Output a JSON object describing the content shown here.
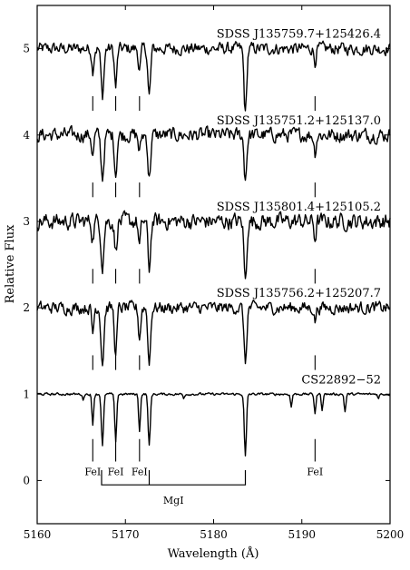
{
  "chart_data": {
    "type": "line",
    "xlabel": "Wavelength (Å)",
    "ylabel": "Relative Flux",
    "xlim": [
      5160,
      5200
    ],
    "ylim": [
      -0.5,
      5.5
    ],
    "xticks": [
      5160,
      5170,
      5180,
      5190,
      5200
    ],
    "yticks": [
      0,
      1,
      2,
      3,
      4,
      5
    ],
    "grid": false,
    "series": [
      {
        "name": "SDSS J135759.7+125426.4",
        "offset": 5,
        "noise": 0.06,
        "lines": [
          [
            5166.3,
            0.25,
            0.12
          ],
          [
            5167.4,
            0.55,
            0.16
          ],
          [
            5168.9,
            0.45,
            0.14
          ],
          [
            5171.6,
            0.25,
            0.13
          ],
          [
            5172.7,
            0.55,
            0.15
          ],
          [
            5183.6,
            0.75,
            0.15
          ],
          [
            5191.5,
            0.15,
            0.12
          ]
        ]
      },
      {
        "name": "SDSS J135751.2+125137.0",
        "offset": 4,
        "noise": 0.07,
        "lines": [
          [
            5166.3,
            0.25,
            0.12
          ],
          [
            5167.4,
            0.5,
            0.16
          ],
          [
            5168.9,
            0.45,
            0.14
          ],
          [
            5171.6,
            0.2,
            0.13
          ],
          [
            5172.7,
            0.5,
            0.15
          ],
          [
            5183.6,
            0.5,
            0.15
          ],
          [
            5191.5,
            0.2,
            0.12
          ]
        ]
      },
      {
        "name": "SDSS J135801.4+125105.2",
        "offset": 3,
        "noise": 0.08,
        "lines": [
          [
            5166.3,
            0.2,
            0.12
          ],
          [
            5167.4,
            0.5,
            0.16
          ],
          [
            5168.9,
            0.35,
            0.14
          ],
          [
            5171.6,
            0.3,
            0.13
          ],
          [
            5172.7,
            0.55,
            0.15
          ],
          [
            5183.6,
            0.7,
            0.15
          ],
          [
            5191.5,
            0.2,
            0.12
          ]
        ]
      },
      {
        "name": "SDSS J135756.2+125207.7",
        "offset": 2,
        "noise": 0.06,
        "lines": [
          [
            5166.3,
            0.3,
            0.12
          ],
          [
            5167.4,
            0.65,
            0.16
          ],
          [
            5168.9,
            0.55,
            0.14
          ],
          [
            5171.6,
            0.35,
            0.13
          ],
          [
            5172.7,
            0.65,
            0.15
          ],
          [
            5183.6,
            0.65,
            0.15
          ],
          [
            5191.5,
            0.15,
            0.12
          ]
        ]
      },
      {
        "name": "CS22892−52",
        "offset": 1,
        "noise": 0.012,
        "lines": [
          [
            5165.2,
            0.07,
            0.08
          ],
          [
            5166.3,
            0.35,
            0.1
          ],
          [
            5167.4,
            0.6,
            0.12
          ],
          [
            5168.9,
            0.55,
            0.11
          ],
          [
            5171.6,
            0.42,
            0.1
          ],
          [
            5172.7,
            0.6,
            0.12
          ],
          [
            5176.6,
            0.05,
            0.08
          ],
          [
            5183.6,
            0.72,
            0.12
          ],
          [
            5188.8,
            0.15,
            0.09
          ],
          [
            5191.5,
            0.22,
            0.1
          ],
          [
            5192.3,
            0.18,
            0.09
          ],
          [
            5194.9,
            0.2,
            0.1
          ],
          [
            5198.7,
            0.05,
            0.08
          ]
        ]
      }
    ],
    "line_markers": [
      5166.3,
      5168.9,
      5171.6,
      5191.5
    ],
    "annotations": [
      {
        "text": "FeI",
        "x": 5166.3
      },
      {
        "text": "FeI",
        "x": 5168.9
      },
      {
        "text": "FeI",
        "x": 5171.6
      },
      {
        "text": "FeI",
        "x": 5191.5
      },
      {
        "text": "MgI",
        "x1": 5167.3,
        "x2": 5183.6,
        "mid": 5172.7
      }
    ]
  }
}
